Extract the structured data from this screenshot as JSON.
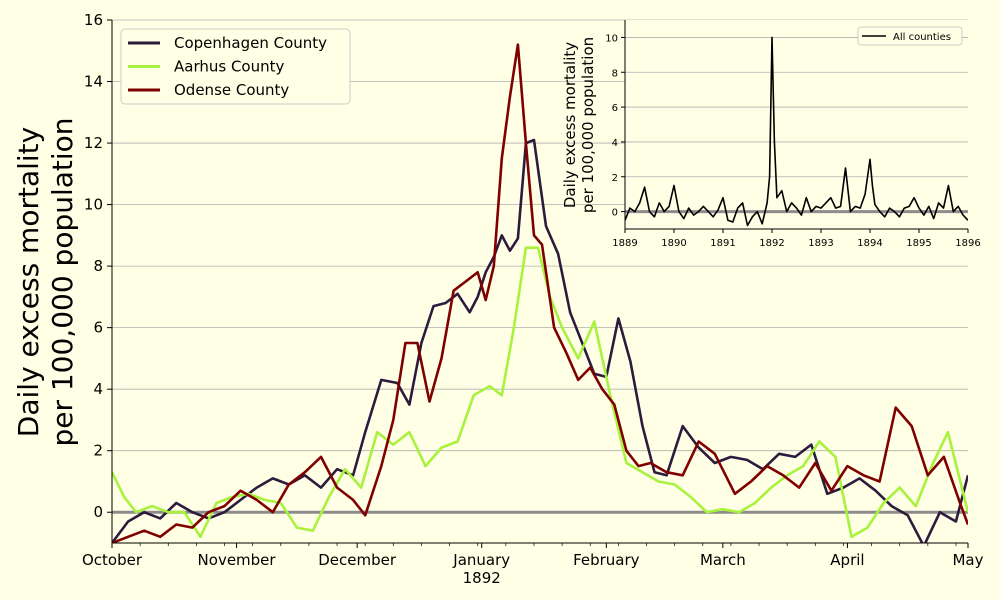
{
  "colors": {
    "background": "#ffffe5",
    "zero_line": "#8c8c8c",
    "grid": "#b0b0b0"
  },
  "chart_data": [
    {
      "id": "main",
      "type": "line",
      "title": "",
      "xlabel": "",
      "ylabel": "Daily excess mortality\nper 100,000 population",
      "x_tick_labels": [
        "October",
        "November",
        "December",
        "January\n1892",
        "February",
        "March",
        "April",
        "May"
      ],
      "x_tick_dates": [
        "1891-10-01",
        "1891-11-01",
        "1891-12-01",
        "1892-01-01",
        "1892-02-01",
        "1892-03-01",
        "1892-04-01",
        "1892-05-01"
      ],
      "xlim": [
        "1891-10-01",
        "1892-05-01"
      ],
      "ylim": [
        -1,
        16
      ],
      "y_ticks": [
        0,
        2,
        4,
        6,
        8,
        10,
        12,
        14,
        16
      ],
      "grid": "horizontal",
      "legend": "top-left",
      "zero_line": 0,
      "series": [
        {
          "name": "Copenhagen County",
          "color": "#2d1b3e",
          "x": [
            "1891-10-01",
            "1891-10-05",
            "1891-10-09",
            "1891-10-13",
            "1891-10-17",
            "1891-10-21",
            "1891-10-25",
            "1891-10-29",
            "1891-11-02",
            "1891-11-06",
            "1891-11-10",
            "1891-11-14",
            "1891-11-18",
            "1891-11-22",
            "1891-11-26",
            "1891-11-30",
            "1891-12-03",
            "1891-12-07",
            "1891-12-11",
            "1891-12-14",
            "1891-12-17",
            "1891-12-20",
            "1891-12-23",
            "1891-12-26",
            "1891-12-29",
            "1891-12-31",
            "1892-01-02",
            "1892-01-04",
            "1892-01-06",
            "1892-01-08",
            "1892-01-10",
            "1892-01-12",
            "1892-01-14",
            "1892-01-17",
            "1892-01-20",
            "1892-01-23",
            "1892-01-26",
            "1892-01-29",
            "1892-02-01",
            "1892-02-04",
            "1892-02-07",
            "1892-02-10",
            "1892-02-13",
            "1892-02-16",
            "1892-02-20",
            "1892-02-24",
            "1892-02-28",
            "1892-03-03",
            "1892-03-07",
            "1892-03-11",
            "1892-03-15",
            "1892-03-19",
            "1892-03-23",
            "1892-03-27",
            "1892-03-31",
            "1892-04-04",
            "1892-04-08",
            "1892-04-12",
            "1892-04-16",
            "1892-04-20",
            "1892-04-24",
            "1892-04-28",
            "1892-05-01"
          ],
          "values": [
            -1.0,
            -0.3,
            0.0,
            -0.2,
            0.3,
            0.0,
            -0.2,
            0.0,
            0.4,
            0.8,
            1.1,
            0.9,
            1.2,
            0.8,
            1.4,
            1.2,
            2.6,
            4.3,
            4.2,
            3.5,
            5.5,
            6.7,
            6.8,
            7.1,
            6.5,
            7.0,
            7.8,
            8.3,
            9.0,
            8.5,
            8.9,
            12.0,
            12.1,
            9.3,
            8.4,
            6.5,
            5.5,
            4.5,
            4.4,
            6.3,
            4.9,
            2.8,
            1.3,
            1.2,
            2.8,
            2.1,
            1.6,
            1.8,
            1.7,
            1.4,
            1.9,
            1.8,
            2.2,
            0.6,
            0.8,
            1.1,
            0.7,
            0.2,
            -0.1,
            -1.1,
            0.0,
            -0.3,
            1.2
          ]
        },
        {
          "name": "Aarhus County",
          "color": "#a8f23e",
          "x": [
            "1891-10-01",
            "1891-10-04",
            "1891-10-07",
            "1891-10-11",
            "1891-10-15",
            "1891-10-19",
            "1891-10-23",
            "1891-10-27",
            "1891-10-31",
            "1891-11-04",
            "1891-11-08",
            "1891-11-12",
            "1891-11-16",
            "1891-11-20",
            "1891-11-24",
            "1891-11-28",
            "1891-12-02",
            "1891-12-06",
            "1891-12-10",
            "1891-12-14",
            "1891-12-18",
            "1891-12-22",
            "1891-12-26",
            "1891-12-30",
            "1892-01-03",
            "1892-01-06",
            "1892-01-09",
            "1892-01-12",
            "1892-01-15",
            "1892-01-18",
            "1892-01-21",
            "1892-01-25",
            "1892-01-29",
            "1892-02-02",
            "1892-02-06",
            "1892-02-10",
            "1892-02-14",
            "1892-02-18",
            "1892-02-22",
            "1892-02-26",
            "1892-03-01",
            "1892-03-05",
            "1892-03-09",
            "1892-03-13",
            "1892-03-17",
            "1892-03-21",
            "1892-03-25",
            "1892-03-29",
            "1892-04-02",
            "1892-04-06",
            "1892-04-10",
            "1892-04-14",
            "1892-04-18",
            "1892-04-22",
            "1892-04-26",
            "1892-05-01"
          ],
          "values": [
            1.3,
            0.5,
            0.0,
            0.2,
            0.0,
            0.0,
            -0.8,
            0.3,
            0.5,
            0.6,
            0.4,
            0.3,
            -0.5,
            -0.6,
            0.5,
            1.4,
            0.8,
            2.6,
            2.2,
            2.6,
            1.5,
            2.1,
            2.3,
            3.8,
            4.1,
            3.8,
            6.0,
            8.6,
            8.6,
            7.0,
            6.0,
            5.0,
            6.2,
            3.8,
            1.6,
            1.3,
            1.0,
            0.9,
            0.5,
            0.0,
            0.1,
            0.0,
            0.3,
            0.8,
            1.2,
            1.5,
            2.3,
            1.8,
            -0.8,
            -0.5,
            0.3,
            0.8,
            0.2,
            1.5,
            2.6,
            0.0
          ]
        },
        {
          "name": "Odense County",
          "color": "#800000",
          "x": [
            "1891-10-01",
            "1891-10-05",
            "1891-10-09",
            "1891-10-13",
            "1891-10-17",
            "1891-10-21",
            "1891-10-25",
            "1891-10-29",
            "1891-11-02",
            "1891-11-06",
            "1891-11-10",
            "1891-11-14",
            "1891-11-18",
            "1891-11-22",
            "1891-11-26",
            "1891-11-30",
            "1891-12-03",
            "1891-12-07",
            "1891-12-10",
            "1891-12-13",
            "1891-12-16",
            "1891-12-19",
            "1891-12-22",
            "1891-12-25",
            "1891-12-28",
            "1891-12-31",
            "1892-01-02",
            "1892-01-04",
            "1892-01-06",
            "1892-01-08",
            "1892-01-10",
            "1892-01-12",
            "1892-01-14",
            "1892-01-16",
            "1892-01-19",
            "1892-01-22",
            "1892-01-25",
            "1892-01-28",
            "1892-01-31",
            "1892-02-03",
            "1892-02-06",
            "1892-02-09",
            "1892-02-12",
            "1892-02-16",
            "1892-02-20",
            "1892-02-24",
            "1892-02-28",
            "1892-03-04",
            "1892-03-08",
            "1892-03-12",
            "1892-03-16",
            "1892-03-20",
            "1892-03-24",
            "1892-03-28",
            "1892-04-01",
            "1892-04-05",
            "1892-04-09",
            "1892-04-13",
            "1892-04-17",
            "1892-04-21",
            "1892-04-25",
            "1892-04-29",
            "1892-05-01"
          ],
          "values": [
            -1.0,
            -0.8,
            -0.6,
            -0.8,
            -0.4,
            -0.5,
            0.0,
            0.2,
            0.7,
            0.4,
            0.0,
            0.9,
            1.3,
            1.8,
            0.8,
            0.4,
            -0.1,
            1.5,
            3.0,
            5.5,
            5.5,
            3.6,
            5.0,
            7.2,
            7.5,
            7.8,
            6.9,
            8.0,
            11.5,
            13.5,
            15.2,
            12.0,
            9.0,
            8.7,
            6.0,
            5.2,
            4.3,
            4.7,
            4.0,
            3.5,
            2.0,
            1.5,
            1.6,
            1.3,
            1.2,
            2.3,
            1.9,
            0.6,
            1.0,
            1.5,
            1.2,
            0.8,
            1.6,
            0.7,
            1.5,
            1.2,
            1.0,
            3.4,
            2.8,
            1.2,
            1.8,
            0.3,
            -0.4
          ]
        }
      ]
    },
    {
      "id": "inset",
      "type": "line",
      "title": "",
      "xlabel": "",
      "ylabel": "Daily excess mortality\nper 100,000 population",
      "x_ticks": [
        1889,
        1890,
        1891,
        1892,
        1893,
        1894,
        1895,
        1896
      ],
      "x_tick_labels": [
        "1889",
        "1890",
        "1891",
        "1892",
        "1893",
        "1894",
        "1895",
        "1896"
      ],
      "xlim": [
        1889,
        1896
      ],
      "ylim": [
        -1,
        11
      ],
      "y_ticks": [
        0,
        2,
        4,
        6,
        8,
        10
      ],
      "grid": "horizontal",
      "legend": "top-right",
      "zero_line": 0,
      "series": [
        {
          "name": "All counties",
          "color": "#000000",
          "x": [
            1889.0,
            1889.1,
            1889.2,
            1889.3,
            1889.4,
            1889.5,
            1889.6,
            1889.7,
            1889.8,
            1889.9,
            1890.0,
            1890.1,
            1890.2,
            1890.3,
            1890.4,
            1890.5,
            1890.6,
            1890.7,
            1890.8,
            1890.9,
            1891.0,
            1891.1,
            1891.2,
            1891.3,
            1891.4,
            1891.5,
            1891.6,
            1891.7,
            1891.8,
            1891.9,
            1891.95,
            1892.0,
            1892.05,
            1892.1,
            1892.2,
            1892.3,
            1892.4,
            1892.5,
            1892.6,
            1892.7,
            1892.8,
            1892.9,
            1893.0,
            1893.1,
            1893.2,
            1893.3,
            1893.4,
            1893.5,
            1893.6,
            1893.7,
            1893.8,
            1893.9,
            1894.0,
            1894.05,
            1894.1,
            1894.2,
            1894.3,
            1894.4,
            1894.5,
            1894.6,
            1894.7,
            1894.8,
            1894.9,
            1895.0,
            1895.1,
            1895.2,
            1895.3,
            1895.4,
            1895.5,
            1895.6,
            1895.7,
            1895.8,
            1895.9,
            1896.0
          ],
          "values": [
            -0.5,
            0.2,
            0.0,
            0.5,
            1.4,
            0.0,
            -0.3,
            0.5,
            0.0,
            0.3,
            1.5,
            0.0,
            -0.4,
            0.2,
            -0.2,
            0.0,
            0.3,
            0.0,
            -0.3,
            0.1,
            0.8,
            -0.5,
            -0.6,
            0.2,
            0.5,
            -0.8,
            -0.3,
            0.0,
            -0.7,
            0.5,
            2.0,
            10.0,
            4.0,
            0.8,
            1.2,
            0.0,
            0.5,
            0.2,
            -0.2,
            0.8,
            0.0,
            0.3,
            0.2,
            0.5,
            0.8,
            0.2,
            0.3,
            2.5,
            0.0,
            0.3,
            0.2,
            1.0,
            3.0,
            1.5,
            0.4,
            0.0,
            -0.3,
            0.2,
            0.0,
            -0.3,
            0.2,
            0.3,
            0.8,
            0.2,
            -0.2,
            0.3,
            -0.4,
            0.5,
            0.2,
            1.5,
            0.0,
            0.3,
            -0.2,
            -0.5
          ]
        }
      ]
    }
  ]
}
